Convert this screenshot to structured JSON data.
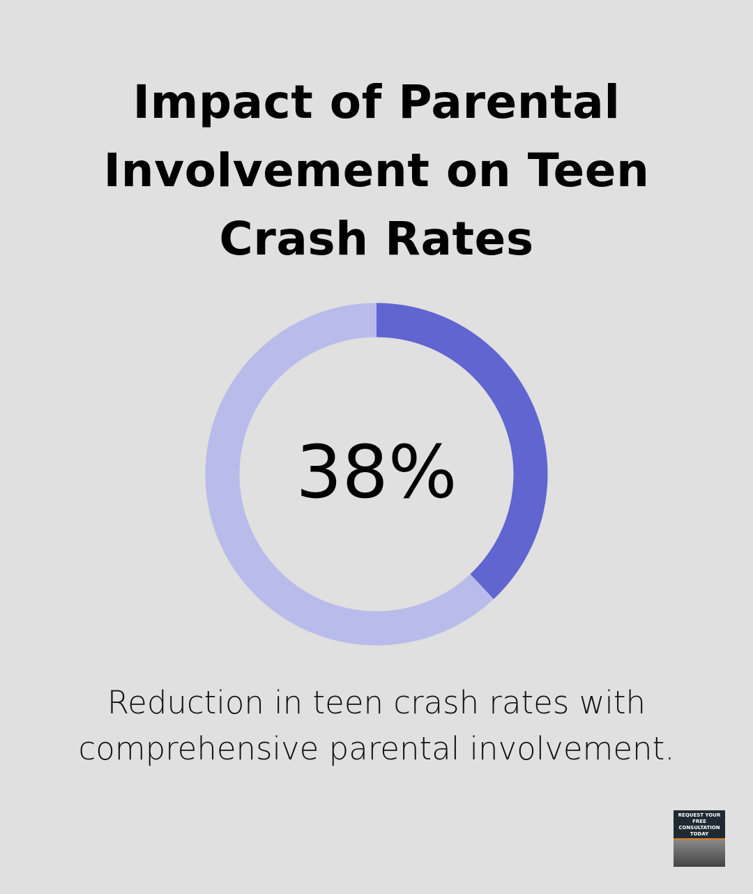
{
  "title": "Impact of Parental Involvement on Teen Crash Rates",
  "chart_data": {
    "type": "pie",
    "variant": "donut",
    "title": "Impact of Parental Involvement on Teen Crash Rates",
    "values": [
      38,
      62
    ],
    "center_label": "38%",
    "caption": "Reduction in teen crash rates with comprehensive parental involvement.",
    "colors": {
      "highlight": "#6065d0",
      "remainder": "#b9bcea"
    }
  },
  "cta": {
    "label": "REQUEST YOUR FREE CONSULTATION TODAY"
  }
}
